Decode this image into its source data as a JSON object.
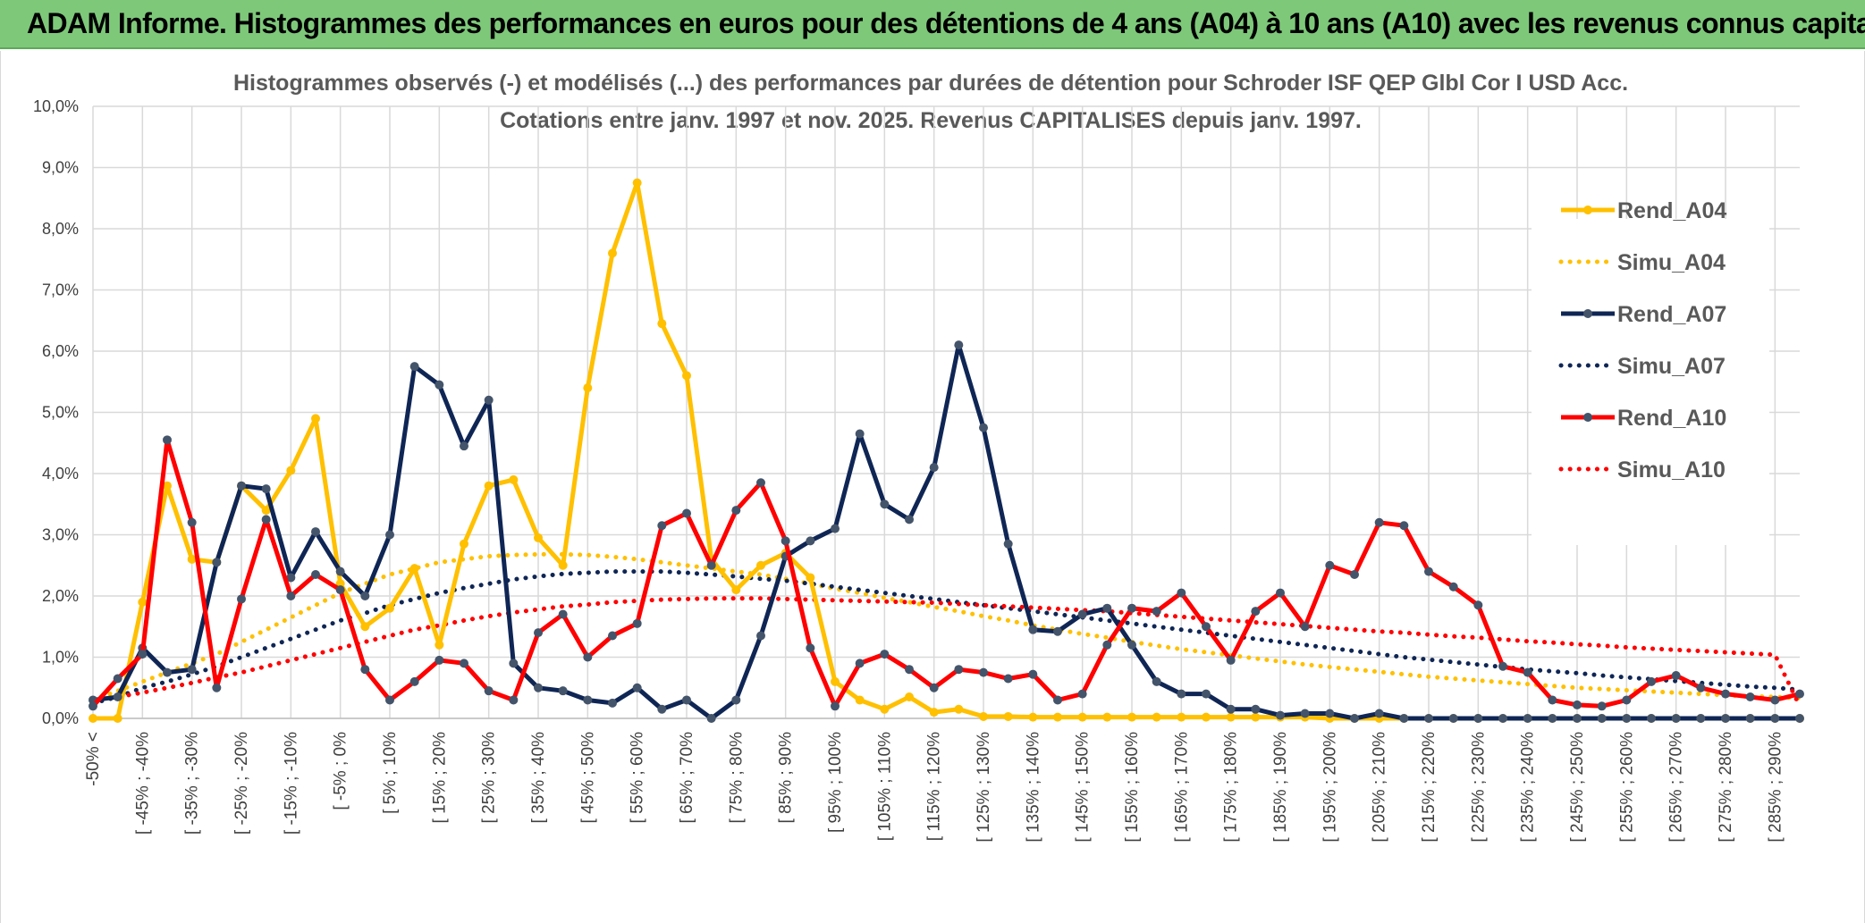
{
  "banner": {
    "title": "ADAM Informe. Histogrammes des performances en euros pour des détentions de 4 ans (A04) à 10 ans (A10) avec les revenus connus capitalisés"
  },
  "colors": {
    "banner_bg": "#7ec87a",
    "A04": "#ffc000",
    "A07": "#0f2655",
    "A10": "#ff0000",
    "grid": "#d9d9d9"
  },
  "chart_data": {
    "type": "line",
    "title": "Histogrammes observés (-) et modélisés (...) des performances par durées de détention pour Schroder ISF QEP Glbl Cor I USD Acc.",
    "subtitle": "Cotations entre janv. 1997 et nov. 2025. Revenus CAPITALISES depuis janv. 1997.",
    "xlabel": "",
    "ylabel": "",
    "ylim": [
      0,
      10
    ],
    "y_ticks": [
      "0,0%",
      "1,0%",
      "2,0%",
      "3,0%",
      "4,0%",
      "5,0%",
      "6,0%",
      "7,0%",
      "8,0%",
      "9,0%",
      "10,0%"
    ],
    "grid": true,
    "legend_position": "right",
    "x_labels": [
      "-50% <",
      "[ -45% ; -40%",
      "[ -35% ; -30%",
      "[ -25% ; -20%",
      "[ -15% ; -10%",
      "[ -5% ; 0%",
      "[ 5% ; 10%",
      "[ 15% ; 20%",
      "[ 25% ; 30%",
      "[ 35% ; 40%",
      "[ 45% ; 50%",
      "[ 55% ; 60%",
      "[ 65% ; 70%",
      "[ 75% ; 80%",
      "[ 85% ; 90%",
      "[ 95% ; 100%",
      "[ 105% ; 110%",
      "[ 115% ; 120%",
      "[ 125% ; 130%",
      "[ 135% ; 140%",
      "[ 145% ; 150%",
      "[ 155% ; 160%",
      "[ 165% ; 170%",
      "[ 175% ; 180%",
      "[ 185% ; 190%",
      "[ 195% ; 200%",
      "[ 205% ; 210%",
      "[ 215% ; 220%",
      "[ 225% ; 230%",
      "[ 235% ; 240%",
      "[ 245% ; 250%",
      "[ 255% ; 260%",
      "[ 265% ; 270%",
      "[ 275% ; 280%",
      "[ 285% ; 290%"
    ],
    "x_label_indices": [
      0,
      2,
      4,
      6,
      8,
      10,
      12,
      14,
      16,
      18,
      20,
      22,
      24,
      26,
      28,
      30,
      32,
      34,
      36,
      38,
      40,
      42,
      44,
      46,
      48,
      50,
      52,
      54,
      56,
      58,
      60,
      62,
      64,
      66,
      68
    ],
    "series": [
      {
        "name": "Rend_A04",
        "style": "solid",
        "color": "#ffc000",
        "values": [
          0.0,
          0.0,
          1.9,
          3.8,
          2.6,
          2.55,
          3.8,
          3.4,
          4.05,
          4.9,
          2.2,
          1.5,
          1.8,
          2.45,
          1.2,
          2.85,
          3.8,
          3.9,
          2.95,
          2.5,
          5.4,
          7.6,
          8.75,
          6.45,
          5.6,
          2.6,
          2.1,
          2.5,
          2.7,
          2.3,
          0.6,
          0.3,
          0.15,
          0.35,
          0.1,
          0.15,
          0.03,
          0.03,
          0.02,
          0.02,
          0.02,
          0.02,
          0.02,
          0.02,
          0.02,
          0.02,
          0.02,
          0.02,
          0.02,
          0.02,
          0.0,
          0.0,
          0.0,
          0.0,
          0.0,
          0.0,
          0.0,
          0.0,
          0.0,
          0.0,
          0.0,
          0.0,
          0.0,
          0.0,
          0.0,
          0.0,
          0.0,
          0.0,
          0.0,
          0.0
        ]
      },
      {
        "name": "Simu_A04",
        "style": "dotted",
        "color": "#ffc000",
        "values": [
          0.3,
          0.45,
          0.6,
          0.75,
          0.9,
          1.05,
          1.25,
          1.45,
          1.65,
          1.85,
          2.05,
          2.2,
          2.35,
          2.45,
          2.55,
          2.6,
          2.65,
          2.67,
          2.68,
          2.68,
          2.67,
          2.64,
          2.6,
          2.55,
          2.5,
          2.45,
          2.4,
          2.35,
          2.28,
          2.2,
          2.12,
          2.05,
          1.97,
          1.9,
          1.82,
          1.75,
          1.67,
          1.6,
          1.52,
          1.45,
          1.38,
          1.32,
          1.25,
          1.19,
          1.13,
          1.08,
          1.03,
          0.98,
          0.93,
          0.88,
          0.84,
          0.8,
          0.76,
          0.72,
          0.68,
          0.65,
          0.62,
          0.59,
          0.56,
          0.53,
          0.5,
          0.48,
          0.46,
          0.44,
          0.42,
          0.4,
          0.38,
          0.36,
          0.35,
          0.33
        ]
      },
      {
        "name": "Rend_A07",
        "style": "solid",
        "color": "#0f2655",
        "values": [
          0.3,
          0.35,
          1.15,
          0.75,
          0.8,
          2.55,
          3.8,
          3.75,
          2.3,
          3.05,
          2.4,
          2.0,
          3.0,
          5.75,
          5.45,
          4.45,
          5.2,
          0.9,
          0.5,
          0.45,
          0.3,
          0.25,
          0.5,
          0.15,
          0.3,
          0.0,
          0.3,
          1.35,
          2.65,
          2.9,
          3.1,
          4.65,
          3.5,
          3.25,
          4.1,
          6.1,
          4.75,
          2.85,
          1.45,
          1.42,
          1.7,
          1.8,
          1.2,
          0.6,
          0.4,
          0.4,
          0.15,
          0.15,
          0.05,
          0.08,
          0.08,
          0.0,
          0.08,
          0.0,
          0.0,
          0.0,
          0.0,
          0.0,
          0.0,
          0.0,
          0.0,
          0.0,
          0.0,
          0.0,
          0.0,
          0.0,
          0.0,
          0.0,
          0.0,
          0.0
        ]
      },
      {
        "name": "Simu_A07",
        "style": "dotted",
        "color": "#0f2655",
        "values": [
          0.25,
          0.35,
          0.5,
          0.6,
          0.72,
          0.85,
          1.0,
          1.15,
          1.3,
          1.45,
          1.6,
          1.72,
          1.85,
          1.95,
          2.05,
          2.13,
          2.2,
          2.27,
          2.32,
          2.36,
          2.38,
          2.4,
          2.4,
          2.4,
          2.38,
          2.35,
          2.32,
          2.28,
          2.25,
          2.2,
          2.15,
          2.1,
          2.05,
          2.0,
          1.95,
          1.9,
          1.85,
          1.8,
          1.75,
          1.7,
          1.65,
          1.6,
          1.55,
          1.5,
          1.45,
          1.4,
          1.35,
          1.3,
          1.25,
          1.2,
          1.15,
          1.1,
          1.05,
          1.0,
          0.96,
          0.92,
          0.88,
          0.84,
          0.8,
          0.77,
          0.74,
          0.7,
          0.67,
          0.64,
          0.61,
          0.58,
          0.55,
          0.52,
          0.5,
          0.47
        ]
      },
      {
        "name": "Rend_A10",
        "style": "solid",
        "color": "#ff0000",
        "values": [
          0.2,
          0.65,
          1.05,
          4.55,
          3.2,
          0.5,
          1.95,
          3.25,
          2.0,
          2.35,
          2.1,
          0.8,
          0.3,
          0.6,
          0.95,
          0.9,
          0.45,
          0.3,
          1.4,
          1.7,
          1.0,
          1.35,
          1.55,
          3.15,
          3.35,
          2.5,
          3.4,
          3.85,
          2.9,
          1.15,
          0.2,
          0.9,
          1.05,
          0.8,
          0.5,
          0.8,
          0.75,
          0.65,
          0.72,
          0.3,
          0.4,
          1.2,
          1.8,
          1.75,
          2.05,
          1.5,
          0.95,
          1.75,
          2.05,
          1.5,
          2.5,
          2.35,
          3.2,
          3.15,
          2.4,
          2.15,
          1.85,
          0.85,
          0.75,
          0.3,
          0.22,
          0.2,
          0.3,
          0.6,
          0.7,
          0.5,
          0.4,
          0.35,
          0.3,
          0.4
        ]
      },
      {
        "name": "Simu_A10",
        "style": "dotted",
        "color": "#ff0000",
        "values": [
          0.3,
          0.35,
          0.42,
          0.5,
          0.58,
          0.67,
          0.75,
          0.85,
          0.95,
          1.05,
          1.15,
          1.25,
          1.35,
          1.45,
          1.52,
          1.6,
          1.67,
          1.73,
          1.78,
          1.83,
          1.86,
          1.9,
          1.92,
          1.94,
          1.95,
          1.96,
          1.96,
          1.96,
          1.95,
          1.94,
          1.93,
          1.92,
          1.91,
          1.9,
          1.89,
          1.87,
          1.85,
          1.83,
          1.81,
          1.79,
          1.77,
          1.75,
          1.72,
          1.69,
          1.66,
          1.63,
          1.6,
          1.57,
          1.54,
          1.51,
          1.48,
          1.45,
          1.42,
          1.4,
          1.37,
          1.34,
          1.32,
          1.29,
          1.26,
          1.24,
          1.21,
          1.19,
          1.16,
          1.14,
          1.12,
          1.1,
          1.08,
          1.06,
          1.04,
          0.2
        ]
      }
    ]
  }
}
